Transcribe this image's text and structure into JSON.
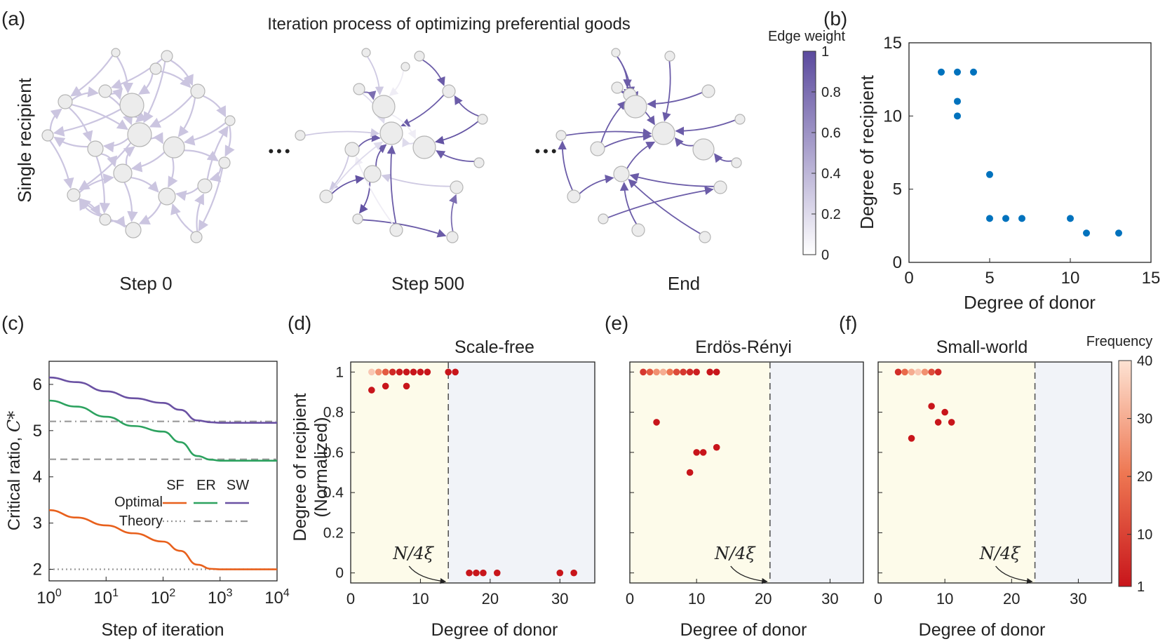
{
  "chart_data": [
    {
      "panel": "(a)",
      "type": "network",
      "title": "Iteration process of optimizing preferential goods",
      "ylabel": "Single recipient",
      "steps": [
        "Step 0",
        "Step 500",
        "End"
      ],
      "ellipsis": "•••",
      "colorbar": {
        "label": "Edge weight",
        "ticks": [
          "0",
          "0.2",
          "0.4",
          "0.6",
          "0.8",
          "1"
        ],
        "low_color": "#ffffff",
        "high_color": "#5b4a9e"
      }
    },
    {
      "panel": "(b)",
      "type": "scatter",
      "xlabel": "Degree of donor",
      "ylabel": "Degree of recipient",
      "xlim": [
        0,
        15
      ],
      "ylim": [
        0,
        15
      ],
      "xticks": [
        0,
        5,
        10,
        15
      ],
      "yticks": [
        0,
        5,
        10,
        15
      ],
      "color": "#0072bd",
      "points": [
        [
          2,
          13
        ],
        [
          3,
          13
        ],
        [
          4,
          13
        ],
        [
          3,
          11
        ],
        [
          3,
          10
        ],
        [
          5,
          6
        ],
        [
          5,
          3
        ],
        [
          6,
          3
        ],
        [
          7,
          3
        ],
        [
          10,
          3
        ],
        [
          11,
          2
        ],
        [
          13,
          2
        ]
      ]
    },
    {
      "panel": "(c)",
      "type": "line",
      "xscale": "log",
      "xlabel": "Step of iteration",
      "ylabel": "Critical ratio, ",
      "ylabel_symbol": "C*",
      "xlim": [
        1,
        10000
      ],
      "ylim": [
        1.75,
        6.5
      ],
      "yticks": [
        2,
        3,
        4,
        5,
        6
      ],
      "xticks": [
        "10^0",
        "10^1",
        "10^2",
        "10^3",
        "10^4"
      ],
      "legend": {
        "columns": [
          "SF",
          "ER",
          "SW"
        ],
        "rows": [
          "Optimal",
          "Theory"
        ]
      },
      "series": [
        {
          "name": "SF",
          "color": "#e8601c",
          "x": [
            1,
            3,
            10,
            30,
            100,
            200,
            400,
            700,
            1000,
            10000
          ],
          "y": [
            3.28,
            3.12,
            2.95,
            2.78,
            2.6,
            2.4,
            2.1,
            2.01,
            2.0,
            2.0
          ],
          "theory": 2.0,
          "theory_style": "dotted"
        },
        {
          "name": "ER",
          "color": "#2ca25f",
          "x": [
            1,
            3,
            10,
            30,
            100,
            200,
            400,
            700,
            1000,
            10000
          ],
          "y": [
            5.65,
            5.52,
            5.3,
            5.1,
            4.98,
            4.75,
            4.45,
            4.37,
            4.35,
            4.35
          ],
          "theory": 4.38,
          "theory_style": "dashed"
        },
        {
          "name": "SW",
          "color": "#6a51a3",
          "x": [
            1,
            3,
            10,
            30,
            100,
            200,
            400,
            700,
            1000,
            10000
          ],
          "y": [
            6.15,
            6.05,
            5.85,
            5.7,
            5.6,
            5.45,
            5.22,
            5.18,
            5.17,
            5.17
          ],
          "theory": 5.2,
          "theory_style": "dashdot"
        }
      ]
    },
    {
      "panel": "(d)",
      "type": "scatter",
      "title": "Scale-free",
      "xlabel": "Degree of donor",
      "ylabel": "Degree of recipient",
      "ylabel2": "(Normalized)",
      "xlim": [
        0,
        35
      ],
      "ylim": [
        -0.05,
        1.05
      ],
      "threshold": 14,
      "threshold_label": "N/4ξ",
      "points": [
        [
          3,
          1,
          35
        ],
        [
          4,
          1,
          25
        ],
        [
          5,
          1,
          15
        ],
        [
          6,
          1,
          5
        ],
        [
          7,
          1,
          2
        ],
        [
          8,
          1,
          1
        ],
        [
          9,
          1,
          1
        ],
        [
          10,
          1,
          1
        ],
        [
          11,
          1,
          1
        ],
        [
          14,
          1,
          1
        ],
        [
          15,
          1,
          1
        ],
        [
          3,
          0.91,
          1
        ],
        [
          5,
          0.93,
          1
        ],
        [
          8,
          0.93,
          1
        ],
        [
          17,
          0,
          1
        ],
        [
          18,
          0,
          1
        ],
        [
          19,
          0,
          1
        ],
        [
          21,
          0,
          1
        ],
        [
          30,
          0,
          1
        ],
        [
          32,
          0,
          1
        ]
      ]
    },
    {
      "panel": "(e)",
      "type": "scatter",
      "title": "Erdös-Rényi",
      "xlabel": "Degree of donor",
      "xlim": [
        0,
        35
      ],
      "ylim": [
        -0.05,
        1.05
      ],
      "threshold": 21,
      "threshold_label": "N/4ξ",
      "points": [
        [
          2,
          1,
          8
        ],
        [
          3,
          1,
          15
        ],
        [
          4,
          1,
          25
        ],
        [
          5,
          1,
          30
        ],
        [
          6,
          1,
          20
        ],
        [
          7,
          1,
          12
        ],
        [
          8,
          1,
          8
        ],
        [
          9,
          1,
          5
        ],
        [
          10,
          1,
          3
        ],
        [
          12,
          1,
          1
        ],
        [
          13,
          1,
          1
        ],
        [
          4,
          0.75,
          1
        ],
        [
          10,
          0.6,
          1
        ],
        [
          11,
          0.6,
          1
        ],
        [
          13,
          0.625,
          1
        ],
        [
          9,
          0.5,
          1
        ]
      ]
    },
    {
      "panel": "(f)",
      "type": "scatter",
      "title": "Small-world",
      "xlabel": "Degree of donor",
      "xlim": [
        0,
        35
      ],
      "ylim": [
        -0.05,
        1.05
      ],
      "threshold": 23.5,
      "threshold_label": "N/4ξ",
      "points": [
        [
          3,
          1,
          6
        ],
        [
          4,
          1,
          18
        ],
        [
          5,
          1,
          30
        ],
        [
          6,
          1,
          35
        ],
        [
          7,
          1,
          25
        ],
        [
          8,
          1,
          12
        ],
        [
          9,
          1,
          5
        ],
        [
          8,
          0.83,
          1
        ],
        [
          10,
          0.8,
          1
        ],
        [
          9,
          0.75,
          1
        ],
        [
          11,
          0.75,
          1
        ],
        [
          5,
          0.67,
          1
        ]
      ]
    }
  ],
  "colorbar_freq": {
    "label": "Frequency",
    "ticks": [
      "1",
      "10",
      "20",
      "30",
      "40"
    ],
    "low_color": "#c8151b",
    "high_color": "#fde3d3"
  },
  "panel_labels": [
    "(a)",
    "(b)",
    "(c)",
    "(d)",
    "(e)",
    "(f)"
  ],
  "colors": {
    "donor_region": "#fdfbea",
    "other_region": "#f1f3f8",
    "node_fill": "#ececec",
    "node_stroke": "#b4b4b4"
  }
}
